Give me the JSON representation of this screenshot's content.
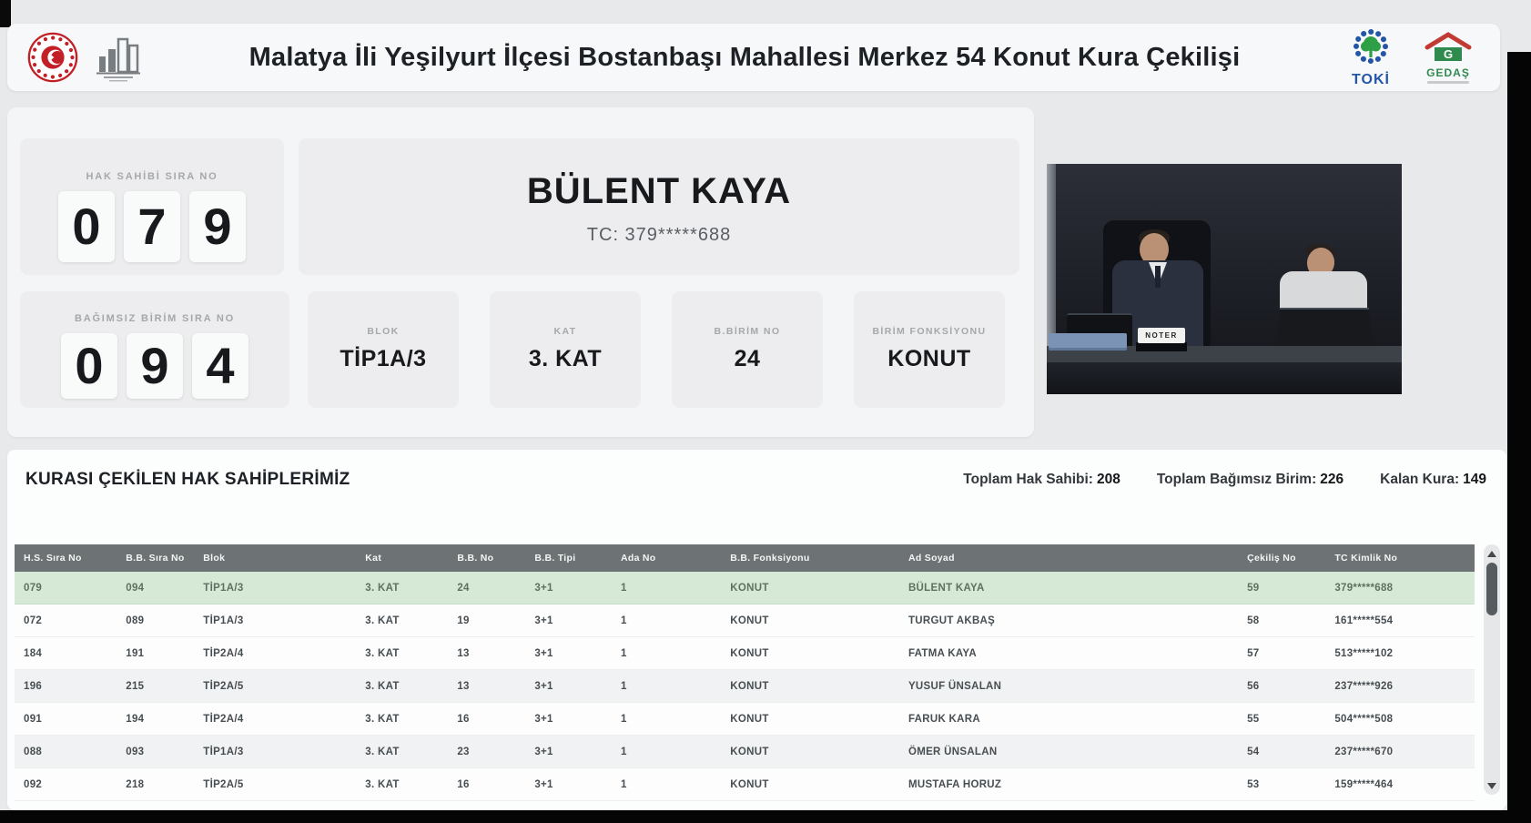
{
  "header": {
    "title": "Malatya İli Yeşilyurt İlçesi Bostanbaşı Mahallesi Merkez 54 Konut Kura Çekilişi",
    "toki_label": "TOKİ",
    "gedas_label": "GEDAŞ"
  },
  "current_draw": {
    "hak_sahibi": {
      "label": "HAK SAHİBİ SIRA NO",
      "digits": [
        "0",
        "7",
        "9"
      ]
    },
    "bagimsiz_birim": {
      "label": "BAĞIMSIZ BİRİM SIRA NO",
      "digits": [
        "0",
        "9",
        "4"
      ]
    },
    "winner": {
      "name": "BÜLENT KAYA",
      "tc": "TC: 379*****688"
    },
    "details": [
      {
        "label": "BLOK",
        "value": "TİP1A/3"
      },
      {
        "label": "KAT",
        "value": "3. KAT"
      },
      {
        "label": "B.BİRİM NO",
        "value": "24"
      },
      {
        "label": "BİRİM FONKSİYONU",
        "value": "KONUT"
      }
    ]
  },
  "video": {
    "name_plate": "NOTER"
  },
  "results": {
    "title": "KURASI ÇEKİLEN HAK SAHİPLERİMİZ",
    "stats": [
      {
        "label": "Toplam Hak Sahibi:",
        "value": "208"
      },
      {
        "label": "Toplam Bağımsız Birim:",
        "value": "226"
      },
      {
        "label": "Kalan Kura:",
        "value": "149"
      }
    ],
    "columns": [
      "H.S. Sıra No",
      "B.B. Sıra No",
      "Blok",
      "Kat",
      "B.B. No",
      "B.B. Tipi",
      "Ada No",
      "B.B. Fonksiyonu",
      "Ad Soyad",
      "Çekiliş No",
      "TC Kimlik No"
    ],
    "rows": [
      [
        "079",
        "094",
        "TİP1A/3",
        "3. KAT",
        "24",
        "3+1",
        "1",
        "KONUT",
        "BÜLENT KAYA",
        "59",
        "379*****688"
      ],
      [
        "072",
        "089",
        "TİP1A/3",
        "3. KAT",
        "19",
        "3+1",
        "1",
        "KONUT",
        "TURGUT AKBAŞ",
        "58",
        "161*****554"
      ],
      [
        "184",
        "191",
        "TİP2A/4",
        "3. KAT",
        "13",
        "3+1",
        "1",
        "KONUT",
        "FATMA KAYA",
        "57",
        "513*****102"
      ],
      [
        "196",
        "215",
        "TİP2A/5",
        "3. KAT",
        "13",
        "3+1",
        "1",
        "KONUT",
        "YUSUF ÜNSALAN",
        "56",
        "237*****926"
      ],
      [
        "091",
        "194",
        "TİP2A/4",
        "3. KAT",
        "16",
        "3+1",
        "1",
        "KONUT",
        "FARUK KARA",
        "55",
        "504*****508"
      ],
      [
        "088",
        "093",
        "TİP1A/3",
        "3. KAT",
        "23",
        "3+1",
        "1",
        "KONUT",
        "ÖMER ÜNSALAN",
        "54",
        "237*****670"
      ],
      [
        "092",
        "218",
        "TİP2A/5",
        "3. KAT",
        "16",
        "3+1",
        "1",
        "KONUT",
        "MUSTAFA HORUZ",
        "53",
        "159*****464"
      ]
    ],
    "highlighted_row": 0
  },
  "colors": {
    "accent_green_row": "#d5e9d6",
    "table_header_bg": "#6d7374",
    "toki_blue": "#2356a8",
    "toki_green": "#2e9e47",
    "gedas_green": "#2f8a4e",
    "gedas_red": "#c23b33",
    "emblem_red": "#c22026"
  }
}
